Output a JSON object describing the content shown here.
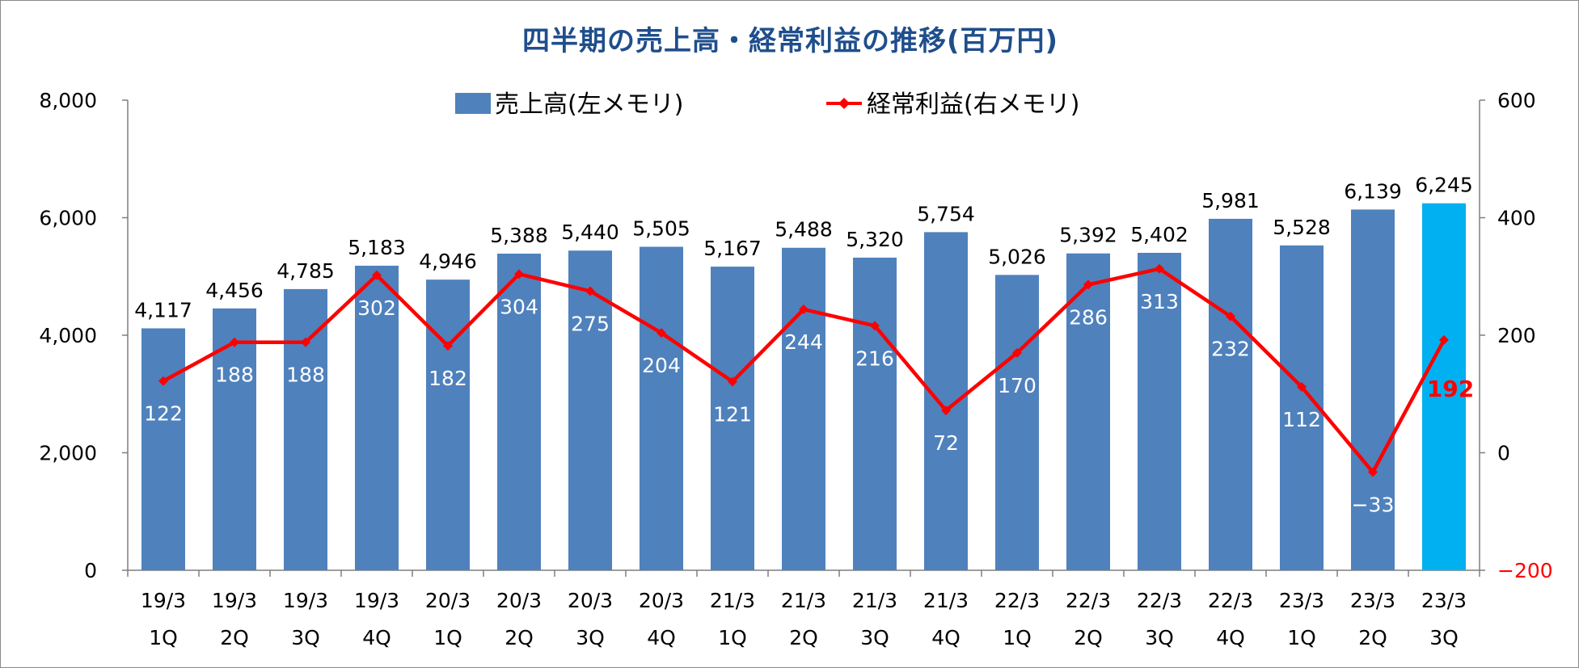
{
  "chart_data": {
    "type": "bar",
    "title": "四半期の売上高・経常利益の推移(百万円)",
    "categories": [
      [
        "19/3",
        "1Q"
      ],
      [
        "19/3",
        "2Q"
      ],
      [
        "19/3",
        "3Q"
      ],
      [
        "19/3",
        "4Q"
      ],
      [
        "20/3",
        "1Q"
      ],
      [
        "20/3",
        "2Q"
      ],
      [
        "20/3",
        "3Q"
      ],
      [
        "20/3",
        "4Q"
      ],
      [
        "21/3",
        "1Q"
      ],
      [
        "21/3",
        "2Q"
      ],
      [
        "21/3",
        "3Q"
      ],
      [
        "21/3",
        "4Q"
      ],
      [
        "22/3",
        "1Q"
      ],
      [
        "22/3",
        "2Q"
      ],
      [
        "22/3",
        "3Q"
      ],
      [
        "22/3",
        "4Q"
      ],
      [
        "23/3",
        "1Q"
      ],
      [
        "23/3",
        "2Q"
      ],
      [
        "23/3",
        "3Q"
      ]
    ],
    "series": [
      {
        "name": "売上高(左メモリ)",
        "type": "bar",
        "axis": "left",
        "color": "#4f81bd",
        "highlight_color": "#00b0f0",
        "highlight_index": 18,
        "values": [
          4117,
          4456,
          4785,
          5183,
          4946,
          5388,
          5440,
          5505,
          5167,
          5488,
          5320,
          5754,
          5026,
          5392,
          5402,
          5981,
          5528,
          6139,
          6245
        ],
        "labels": [
          "4,117",
          "4,456",
          "4,785",
          "5,183",
          "4,946",
          "5,388",
          "5,440",
          "5,505",
          "5,167",
          "5,488",
          "5,320",
          "5,754",
          "5,026",
          "5,392",
          "5,402",
          "5,981",
          "5,528",
          "6,139",
          "6,245"
        ]
      },
      {
        "name": "経常利益(右メモリ)",
        "type": "line",
        "axis": "right",
        "color": "#ff0000",
        "values": [
          122,
          188,
          188,
          302,
          182,
          304,
          275,
          204,
          121,
          244,
          216,
          72,
          170,
          286,
          313,
          232,
          112,
          -33,
          192
        ],
        "labels": [
          "122",
          "188",
          "188",
          "302",
          "182",
          "304",
          "275",
          "204",
          "121",
          "244",
          "216",
          "72",
          "170",
          "286",
          "313",
          "232",
          "112",
          "−33",
          "192"
        ]
      }
    ],
    "y_left": {
      "min": 0,
      "max": 8000,
      "ticks": [
        0,
        2000,
        4000,
        6000,
        8000
      ],
      "tick_labels": [
        "0",
        "2,000",
        "4,000",
        "6,000",
        "8,000"
      ]
    },
    "y_right": {
      "min": -200,
      "max": 600,
      "ticks": [
        -200,
        0,
        200,
        400,
        600
      ],
      "tick_labels": [
        "−200",
        "0",
        "200",
        "400",
        "600"
      ],
      "negative_tick_color": "#ff0000"
    },
    "legend": {
      "position": "top"
    },
    "grid": false
  }
}
